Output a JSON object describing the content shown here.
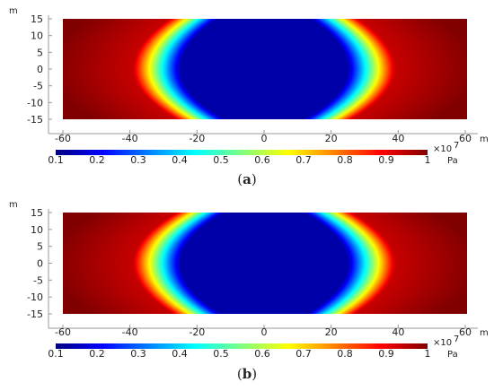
{
  "figure": {
    "panel_open": "(",
    "panel_close": ")"
  },
  "chart_data": [
    {
      "type": "heatmap",
      "panel": "a",
      "xlabel": "m",
      "ylabel": "m",
      "xlim": [
        -65,
        65
      ],
      "ylim": [
        -15,
        15
      ],
      "xticks": [
        -60,
        -40,
        -20,
        0,
        20,
        40,
        60
      ],
      "yticks": [
        15,
        10,
        5,
        0,
        -5,
        -10,
        -15
      ],
      "field": "pressure",
      "low_region_halfwidth_at_y": [
        {
          "y": 15,
          "halfwidth": 20
        },
        {
          "y": 0,
          "halfwidth": 31
        },
        {
          "y": -15,
          "halfwidth": 18
        }
      ],
      "colorbar": {
        "ticks": [
          0.1,
          0.2,
          0.3,
          0.4,
          0.5,
          0.6,
          0.7,
          0.8,
          0.9,
          1
        ],
        "range": [
          0.1,
          1
        ],
        "multiplier": "×10",
        "exponent": "7",
        "unit": "Pa",
        "colormap": "jet"
      }
    },
    {
      "type": "heatmap",
      "panel": "b",
      "xlabel": "m",
      "ylabel": "m",
      "xlim": [
        -65,
        65
      ],
      "ylim": [
        -15,
        15
      ],
      "xticks": [
        -60,
        -40,
        -20,
        0,
        20,
        40,
        60
      ],
      "yticks": [
        15,
        10,
        5,
        0,
        -5,
        -10,
        -15
      ],
      "field": "pressure",
      "low_region_halfwidth_at_y": [
        {
          "y": 15,
          "halfwidth": 18
        },
        {
          "y": 0,
          "halfwidth": 31
        },
        {
          "y": -15,
          "halfwidth": 19
        }
      ],
      "colorbar": {
        "ticks": [
          0.1,
          0.2,
          0.3,
          0.4,
          0.5,
          0.6,
          0.7,
          0.8,
          0.9,
          1
        ],
        "range": [
          0.1,
          1
        ],
        "multiplier": "×10",
        "exponent": "7",
        "unit": "Pa",
        "colormap": "jet"
      }
    }
  ]
}
